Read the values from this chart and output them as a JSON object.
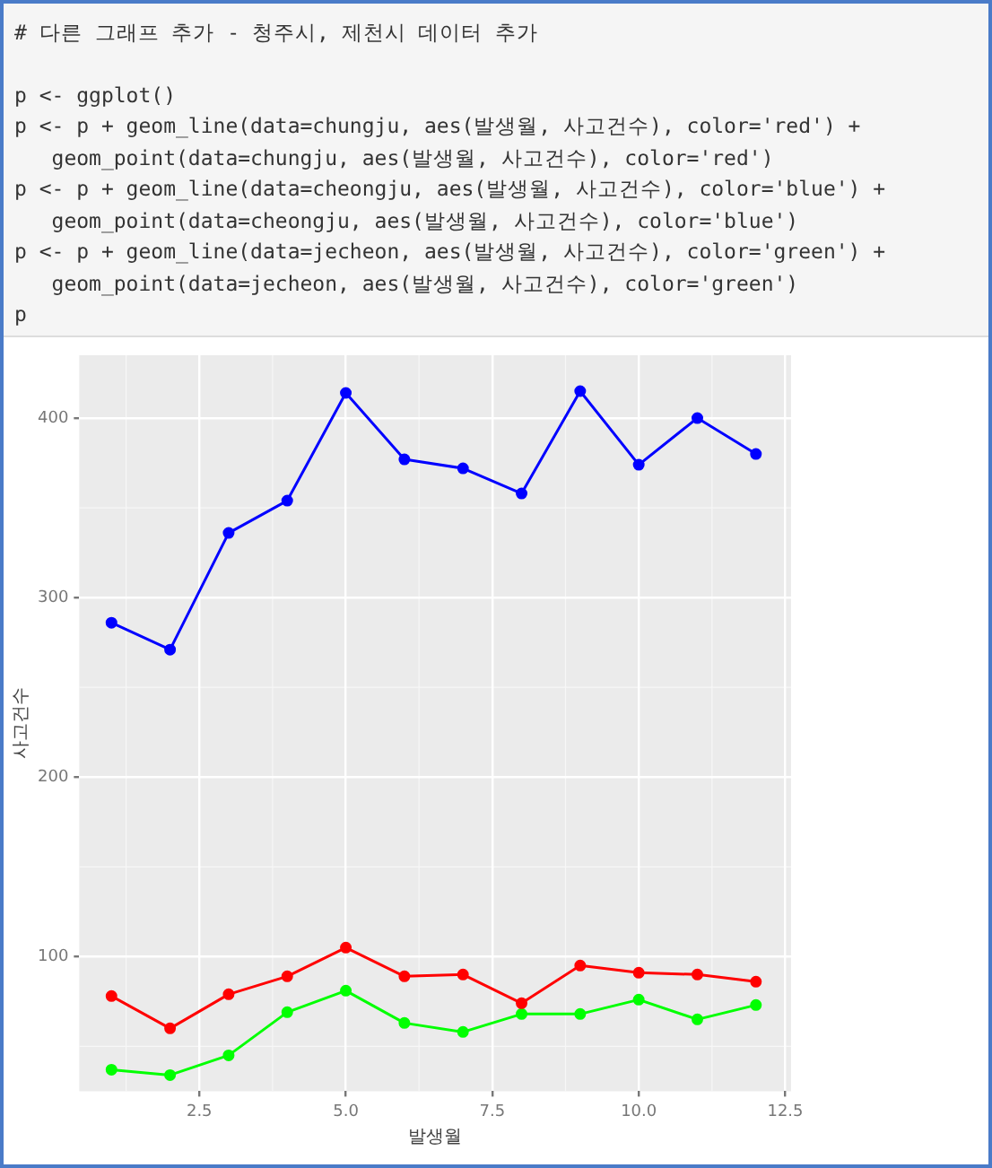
{
  "chart_data": {
    "type": "line",
    "xlabel": "발생월",
    "ylabel": "사고건수",
    "annotations": [
      "# 다른 그래프 추가 - 청주시, 제천시 데이터 추가",
      "p <- ggplot()",
      "p <- p + geom_line(data=chungju, aes(발생월, 사고건수), color='red') +",
      "   geom_point(data=chungju, aes(발생월, 사고건수), color='red')",
      "p <- p + geom_line(data=cheongju, aes(발생월, 사고건수), color='blue') +",
      "   geom_point(data=cheongju, aes(발생월, 사고건수), color='blue')",
      "p <- p + geom_line(data=jecheon, aes(발생월, 사고건수), color='green') +",
      "   geom_point(data=jecheon, aes(발생월, 사고건수), color='green')",
      "p"
    ],
    "x": [
      1,
      2,
      3,
      4,
      5,
      6,
      7,
      8,
      9,
      10,
      11,
      12
    ],
    "series": [
      {
        "color": "#ff0000",
        "values": [
          78,
          60,
          79,
          89,
          105,
          89,
          90,
          74,
          95,
          91,
          90,
          86
        ]
      },
      {
        "color": "#0000ff",
        "values": [
          286,
          271,
          336,
          354,
          414,
          377,
          372,
          358,
          415,
          374,
          400,
          380
        ]
      },
      {
        "color": "#00ff00",
        "values": [
          37,
          34,
          45,
          69,
          81,
          63,
          58,
          68,
          68,
          76,
          65,
          73
        ]
      }
    ],
    "xlim": [
      0.45,
      12.6
    ],
    "ylim": [
      25,
      435
    ],
    "xticks": [
      {
        "value": 2.5,
        "label": "2.5"
      },
      {
        "value": 5,
        "label": "5.0"
      },
      {
        "value": 7.5,
        "label": "7.5"
      },
      {
        "value": 10,
        "label": "10.0"
      },
      {
        "value": 12.5,
        "label": "12.5"
      }
    ],
    "yticks": [
      100,
      200,
      300,
      400
    ],
    "grid": true,
    "legend": false,
    "marker": "circle",
    "line_style": "solid"
  }
}
